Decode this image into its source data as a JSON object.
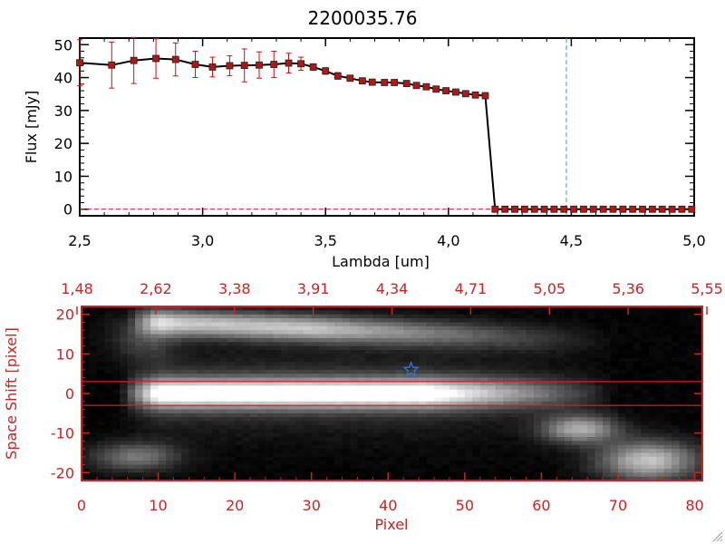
{
  "chart_data": [
    {
      "type": "line",
      "title": "2200035.76",
      "xlabel": "Lambda [um]",
      "ylabel": "Flux [mJy]",
      "xlim": [
        2.5,
        5.0
      ],
      "ylim": [
        -2,
        52
      ],
      "x_ticks": [
        "2.5",
        "3.0",
        "3.5",
        "4.0",
        "4.5",
        "5.0"
      ],
      "y_ticks": [
        "0",
        "10",
        "20",
        "30",
        "40",
        "50"
      ],
      "grid": false,
      "series": [
        {
          "x": [
            2.5,
            2.63,
            2.72,
            2.81,
            2.89,
            2.97,
            3.04,
            3.11,
            3.17,
            3.23,
            3.29,
            3.35,
            3.4,
            3.45,
            3.5,
            3.55,
            3.6,
            3.65,
            3.69,
            3.74,
            3.78,
            3.83,
            3.87,
            3.91,
            3.95,
            3.99,
            4.03,
            4.07,
            4.11,
            4.15,
            4.19,
            4.23,
            4.27,
            4.31,
            4.35,
            4.39,
            4.43,
            4.47,
            4.51,
            4.55,
            4.59,
            4.63,
            4.67,
            4.71,
            4.75,
            4.79,
            4.83,
            4.87,
            4.91,
            4.95,
            4.99
          ],
          "y": [
            44.5,
            43.8,
            45.2,
            45.8,
            45.5,
            44.0,
            43.2,
            43.6,
            43.7,
            43.8,
            44.0,
            44.4,
            44.2,
            43.2,
            42.0,
            40.5,
            39.8,
            39.0,
            38.6,
            38.5,
            38.5,
            38.2,
            37.6,
            37.2,
            36.5,
            36.0,
            35.6,
            35.1,
            34.7,
            34.5,
            0,
            0,
            0,
            0,
            0,
            0,
            0,
            0,
            0,
            0,
            0,
            0,
            0,
            0,
            0,
            0,
            0,
            0,
            0,
            0,
            0
          ],
          "err": [
            7,
            7,
            7,
            6,
            5,
            4,
            3,
            3,
            5,
            4,
            4,
            3,
            2,
            1,
            1,
            1,
            0.5,
            0.5,
            0.5,
            0.5,
            0.5,
            0.5,
            0.5,
            0.5,
            0.5,
            0.5,
            0.5,
            0.5,
            0.5,
            0.5,
            0,
            0,
            0,
            0,
            0,
            0,
            0,
            0,
            0,
            0,
            0,
            0,
            0,
            0,
            0,
            0,
            0,
            0,
            0,
            0,
            0
          ]
        }
      ],
      "vline_x": 4.48,
      "hline_y": 0,
      "colors": {
        "line": "#000000",
        "marker": "#b01818",
        "errorbar": "#cc1111",
        "vline": "#3399cc",
        "hline": "#cc1111"
      }
    },
    {
      "type": "heatmap",
      "xlabel": "Pixel",
      "ylabel": "Space Shift [pixel]",
      "xlim": [
        0,
        81
      ],
      "ylim": [
        -22,
        22
      ],
      "x_ticks": [
        "0",
        "10",
        "20",
        "30",
        "40",
        "50",
        "60",
        "70",
        "80"
      ],
      "y_ticks": [
        "-20",
        "-10",
        "0",
        "10",
        "20"
      ],
      "top_axis_ticks": [
        "1.48",
        "2.62",
        "3.38",
        "3.91",
        "4.34",
        "4.71",
        "5.05",
        "5.36",
        "5.55"
      ],
      "hlines_y": [
        3,
        -3
      ],
      "star_marker": {
        "x": 43,
        "y": 6
      },
      "colors": {
        "axes": "#cc2222",
        "star": "#3377ee"
      },
      "colormap": "grayscale"
    }
  ]
}
